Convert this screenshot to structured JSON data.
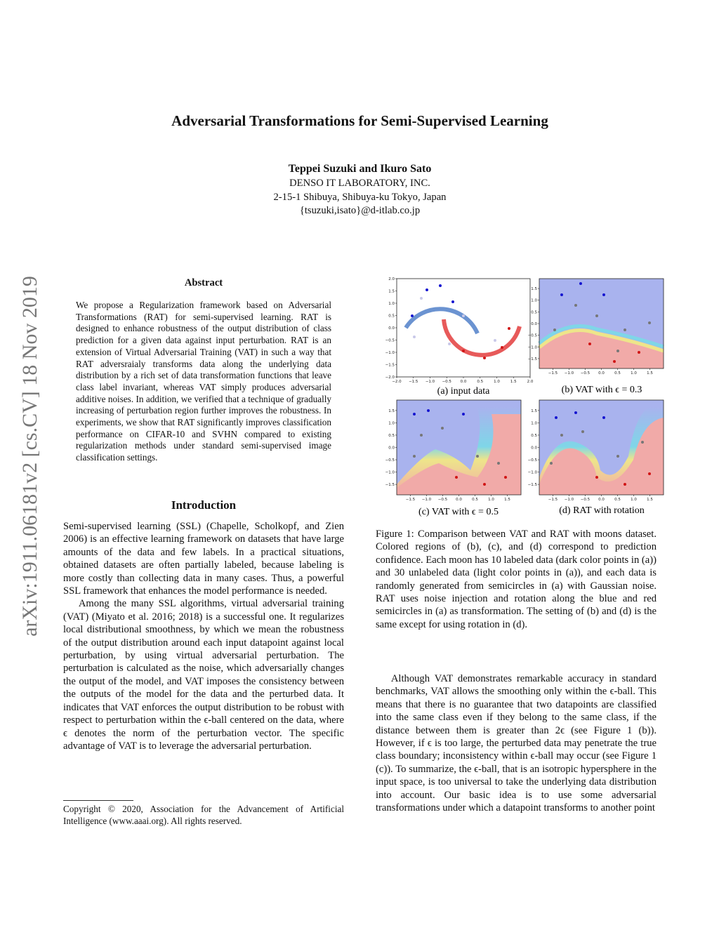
{
  "arxiv_id": "arXiv:1911.06181v2 [cs.CV] 18 Nov 2019",
  "header": {
    "title": "Adversarial Transformations for Semi-Supervised Learning",
    "authors": "Teppei Suzuki and Ikuro Sato",
    "affiliation": [
      "DENSO IT LABORATORY, INC.",
      "2-15-1 Shibuya, Shibuya-ku Tokyo, Japan",
      "{tsuzuki,isato}@d-itlab.co.jp"
    ]
  },
  "abstract": {
    "heading": "Abstract",
    "text": "We propose a Regularization framework based on Adversarial Transformations (RAT) for semi-supervised learning. RAT is designed to enhance robustness of the output distribution of class prediction for a given data against input perturbation. RAT is an extension of Virtual Adversarial Training (VAT) in such a way that RAT adversraialy transforms data along the underlying data distribution by a rich set of data transformation functions that leave class label invariant, whereas VAT simply produces adversarial additive noises. In addition, we verified that a technique of gradually increasing of perturbation region further improves the robustness. In experiments, we show that RAT significantly improves classification performance on CIFAR-10 and SVHN compared to existing regularization methods under standard semi-supervised image classification settings."
  },
  "introduction": {
    "heading": "Introduction",
    "paragraphs": [
      "Semi-supervised learning (SSL) (Chapelle, Scholkopf, and Zien 2006) is an effective learning framework on datasets that have large amounts of the data and few labels. In a practical situations, obtained datasets are often partially labeled, because labeling is more costly than collecting data in many cases. Thus, a powerful SSL framework that enhances the model performance is needed.",
      "Among the many SSL algorithms, virtual adversarial training (VAT) (Miyato et al. 2016; 2018) is a successful one. It regularizes local distributional smoothness, by which we mean the robustness of the output distribution around each input datapoint against local perturbation, by using virtual adversarial perturbation. The perturbation is calculated as the noise, which adversarially changes the output of the model, and VAT imposes the consistency between the outputs of the model for the data and the perturbed data. It indicates that VAT enforces the output distribution to be robust with respect to perturbation within the ϵ-ball centered on the data, where ϵ denotes the norm of the perturbation vector. The specific advantage of VAT is to leverage the adversarial perturbation."
    ]
  },
  "footnote": "Copyright © 2020, Association for the Advancement of Artificial Intelligence (www.aaai.org). All rights reserved.",
  "figure": {
    "panels": [
      {
        "caption": "(a) input data",
        "xticks": [
          "−2.0",
          "−1.5",
          "−1.0",
          "−0.5",
          "0.0",
          "0.5",
          "1.0",
          "1.5",
          "2.0"
        ],
        "yticks": [
          "2.0",
          "1.5",
          "1.0",
          "0.5",
          "0.0",
          "−0.5",
          "−1.0",
          "−1.5",
          "−2.0"
        ]
      },
      {
        "caption": "(b) VAT with ϵ = 0.3",
        "xticks": [
          "−1.5",
          "−1.0",
          "−0.5",
          "0.0",
          "0.5",
          "1.0",
          "1.5"
        ],
        "yticks": [
          "1.5",
          "1.0",
          "0.5",
          "0.0",
          "−0.5",
          "−1.0",
          "−1.5"
        ]
      },
      {
        "caption": "(c) VAT with ϵ = 0.5",
        "xticks": [
          "−1.5",
          "−1.0",
          "−0.5",
          "0.0",
          "0.5",
          "1.0",
          "1.5"
        ],
        "yticks": [
          "1.5",
          "1.0",
          "0.5",
          "0.0",
          "−0.5",
          "−1.0",
          "−1.5"
        ]
      },
      {
        "caption": "(d) RAT with rotation",
        "xticks": [
          "−1.5",
          "−1.0",
          "−0.5",
          "0.0",
          "0.5",
          "1.0",
          "1.5"
        ],
        "yticks": [
          "1.5",
          "1.0",
          "0.5",
          "0.0",
          "−0.5",
          "−1.0",
          "−1.5"
        ]
      }
    ],
    "caption": "Figure 1: Comparison between VAT and RAT with moons dataset. Colored regions of (b), (c), and (d) correspond to prediction confidence. Each moon has 10 labeled data (dark color points in (a)) and 30 unlabeled data (light color points in (a)), and each data is randomly generated from semicircles in (a) with Gaussian noise. RAT uses noise injection and rotation along the blue and red semicircles in (a) as transformation. The setting of (b) and (d) is the same except for using rotation in (d)."
  },
  "right_column": {
    "paragraph": "Although VAT demonstrates remarkable accuracy in standard benchmarks, VAT allows the smoothing only within the ϵ-ball. This means that there is no guarantee that two datapoints are classified into the same class even if they belong to the same class, if the distance between them is greater than 2ϵ (see Figure 1 (b)). However, if ϵ is too large, the perturbed data may penetrate the true class boundary; inconsistency within ϵ-ball may occur (see Figure 1 (c)). To summarize, the ϵ-ball, that is an isotropic hypersphere in the input space, is too universal to take the underlying data distribution into account. Our basic idea is to use some adversarial transformations under which a datapoint transforms to another point"
  }
}
